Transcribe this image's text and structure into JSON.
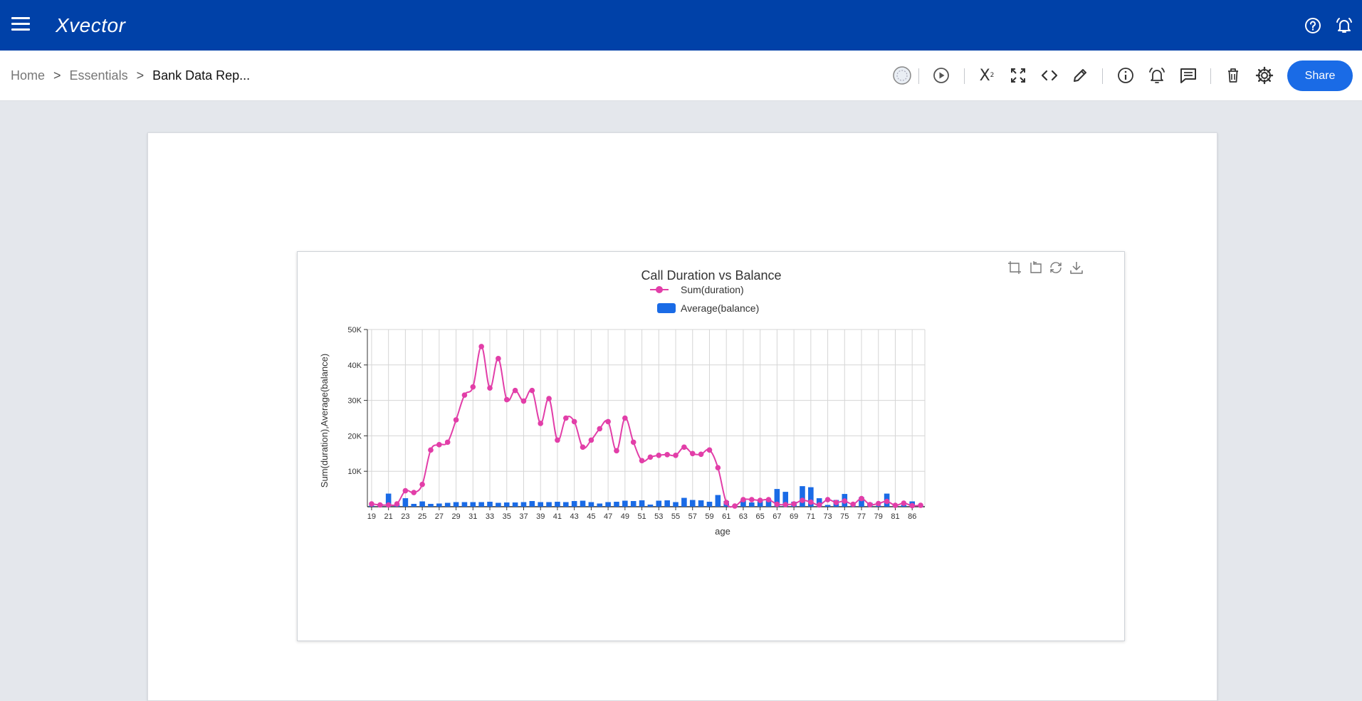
{
  "app": {
    "logo_text": "Xvector"
  },
  "breadcrumb": {
    "items": [
      "Home",
      "Essentials",
      "Bank Data Rep..."
    ],
    "separator": ">"
  },
  "toolbar": {
    "share_label": "Share",
    "icons": [
      "schedule-icon",
      "run-icon",
      "formula-icon",
      "fullscreen-icon",
      "code-icon",
      "edit-icon",
      "info-icon",
      "alert-icon",
      "comment-icon",
      "delete-icon",
      "settings-icon"
    ]
  },
  "colors": {
    "primary": "#0041a8",
    "accent": "#1a6be6",
    "line_series": "#e23ea8",
    "bar_series": "#1a6be6"
  },
  "chart_data": {
    "type": "bar",
    "title": "Call Duration vs Balance",
    "xlabel": "age",
    "ylabel": "Sum(duration),Average(balance)",
    "ylim": [
      0,
      50000
    ],
    "y_ticks": [
      "10K",
      "20K",
      "30K",
      "40K",
      "50K"
    ],
    "grid": true,
    "legend_position": "top",
    "categories": [
      19,
      20,
      21,
      22,
      23,
      24,
      25,
      26,
      27,
      28,
      29,
      30,
      31,
      32,
      33,
      34,
      35,
      36,
      37,
      38,
      39,
      40,
      41,
      42,
      43,
      44,
      45,
      46,
      47,
      48,
      49,
      50,
      51,
      52,
      53,
      54,
      55,
      56,
      57,
      58,
      59,
      60,
      61,
      62,
      63,
      64,
      65,
      66,
      67,
      68,
      69,
      70,
      71,
      72,
      73,
      74,
      75,
      76,
      77,
      78,
      79,
      80,
      81,
      83,
      86,
      87
    ],
    "x_tick_labels": [
      "19",
      "21",
      "23",
      "25",
      "27",
      "29",
      "31",
      "33",
      "35",
      "37",
      "39",
      "41",
      "43",
      "45",
      "47",
      "49",
      "51",
      "53",
      "55",
      "57",
      "59",
      "61",
      "63",
      "65",
      "67",
      "69",
      "71",
      "73",
      "75",
      "77",
      "79",
      "81",
      "86"
    ],
    "series": [
      {
        "name": "Sum(duration)",
        "type": "line",
        "values": [
          800,
          500,
          500,
          800,
          4500,
          4000,
          6300,
          16000,
          17500,
          18200,
          24500,
          31500,
          33800,
          45200,
          33500,
          41800,
          30200,
          32800,
          29800,
          32800,
          23500,
          30500,
          18800,
          25000,
          24000,
          16800,
          18800,
          22000,
          24000,
          15800,
          25000,
          18200,
          13000,
          14000,
          14500,
          14700,
          14500,
          16800,
          15000,
          14800,
          16000,
          11000,
          1200,
          200,
          2000,
          2000,
          1800,
          2000,
          700,
          600,
          800,
          1800,
          1300,
          500,
          2000,
          1200,
          1600,
          700,
          2300,
          600,
          900,
          1500,
          400,
          1000,
          300,
          400
        ]
      },
      {
        "name": "Average(balance)",
        "type": "bar",
        "values": [
          300,
          800,
          3700,
          600,
          2400,
          800,
          1500,
          800,
          900,
          1100,
          1300,
          1300,
          1300,
          1300,
          1400,
          1100,
          1200,
          1200,
          1300,
          1600,
          1300,
          1300,
          1400,
          1300,
          1600,
          1700,
          1300,
          900,
          1300,
          1400,
          1700,
          1600,
          1800,
          600,
          1700,
          1800,
          1300,
          2500,
          1900,
          1800,
          1400,
          3300,
          1600,
          400,
          2000,
          1200,
          1800,
          2000,
          5000,
          4200,
          1400,
          5800,
          5500,
          2400,
          500,
          1900,
          3600,
          300,
          2700,
          1100,
          300,
          3700,
          600,
          500,
          1500,
          300
        ]
      }
    ]
  }
}
